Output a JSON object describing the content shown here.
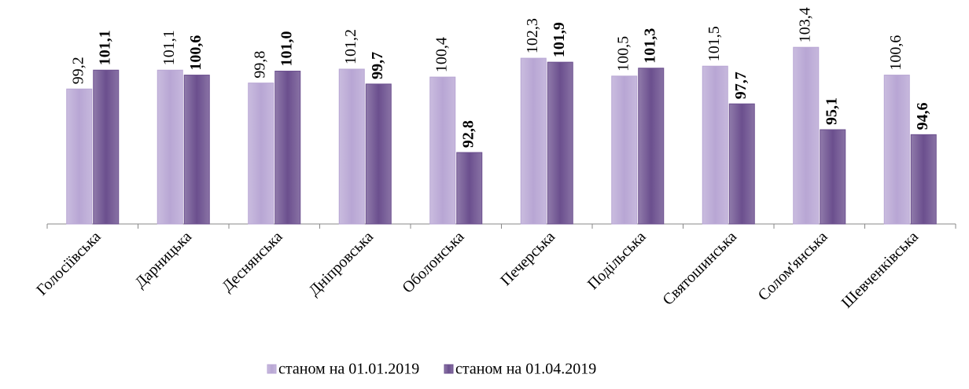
{
  "chart_data": {
    "type": "bar",
    "categories": [
      "Голосіївська",
      "Дарницька",
      "Деснянська",
      "Дніпровська",
      "Оболонська",
      "Печерська",
      "Подільська",
      "Святошинська",
      "Солом'янська",
      "Шевченківська"
    ],
    "series": [
      {
        "name": "станом на 01.01.2019",
        "color": "#b8a6d4",
        "values": [
          99.2,
          101.1,
          99.8,
          101.2,
          100.4,
          102.3,
          100.5,
          101.5,
          103.4,
          100.6
        ],
        "value_labels": [
          "99,2",
          "101,1",
          "99,8",
          "101,2",
          "100,4",
          "102,3",
          "100,5",
          "101,5",
          "103,4",
          "100,6"
        ]
      },
      {
        "name": "станом на 01.04.2019",
        "color": "#6b4f8e",
        "values": [
          101.1,
          100.6,
          101.0,
          99.7,
          92.8,
          101.9,
          101.3,
          97.7,
          95.1,
          94.6
        ],
        "value_labels": [
          "101,1",
          "100,6",
          "101,0",
          "99,7",
          "92,8",
          "101,9",
          "101,3",
          "97,7",
          "95,1",
          "94,6"
        ]
      }
    ],
    "ylim": [
      85.6,
      105
    ]
  }
}
